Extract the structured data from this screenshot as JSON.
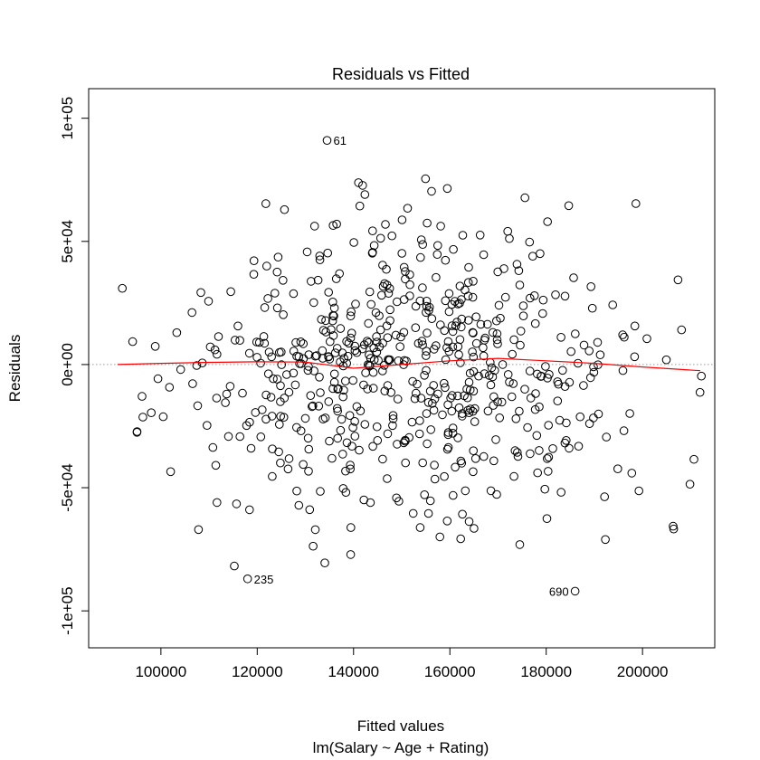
{
  "chart_data": {
    "type": "scatter",
    "title": "Residuals vs Fitted",
    "xlabel": "Fitted values",
    "xlabel_sub": "lm(Salary ~ Age + Rating)",
    "ylabel": "Residuals",
    "xlim": [
      85000,
      215000
    ],
    "ylim": [
      -115000,
      112000
    ],
    "x_ticks": [
      100000,
      120000,
      140000,
      160000,
      180000,
      200000
    ],
    "x_tick_labels": [
      "100000",
      "120000",
      "140000",
      "160000",
      "180000",
      "200000"
    ],
    "y_ticks": [
      -100000,
      -50000,
      0,
      50000,
      100000
    ],
    "y_tick_labels": [
      "-1e+05",
      "-5e+04",
      "0e+00",
      "5e+04",
      "1e+05"
    ],
    "reference_line": {
      "y": 0,
      "style": "dotted",
      "color": "#999999"
    },
    "smoother": {
      "color": "#ff0000",
      "x": [
        91000,
        100000,
        110000,
        120000,
        130000,
        140000,
        150000,
        160000,
        170000,
        180000,
        190000,
        200000,
        212000
      ],
      "y": [
        0,
        500,
        900,
        1100,
        1000,
        -1500,
        0,
        1500,
        2500,
        1500,
        500,
        -1000,
        -2500
      ]
    },
    "labeled_points": [
      {
        "label": "61",
        "x": 134500,
        "y": 91000
      },
      {
        "label": "235",
        "x": 118000,
        "y": -87000
      },
      {
        "label": "690",
        "x": 186000,
        "y": -92000
      }
    ],
    "point_count": 1000,
    "points_note": "Approximately 1000 residuals scattered roughly uniformly in x from ~90000 to ~212000 and in y from ~-80000 to ~80000; exact individual values are not legible."
  }
}
